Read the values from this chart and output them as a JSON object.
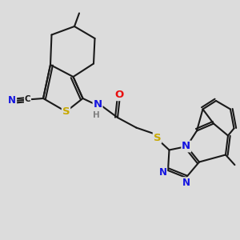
{
  "bg_color": "#dcdcdc",
  "bond_color": "#1a1a1a",
  "bond_lw": 1.5,
  "atom_colors": {
    "C": "#1a1a1a",
    "N": "#1414e0",
    "S": "#c8a800",
    "O": "#e81010",
    "H": "#808080"
  },
  "fs": 8.5
}
